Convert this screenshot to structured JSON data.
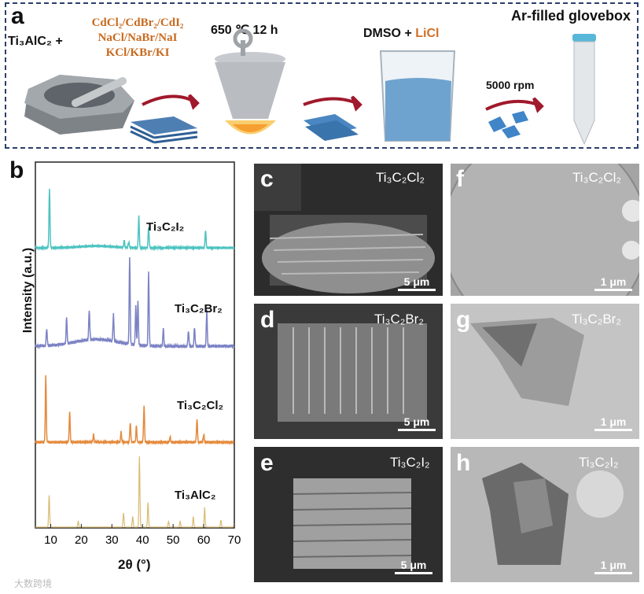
{
  "panels": {
    "a": "a",
    "b": "b",
    "c": "c",
    "d": "d",
    "e": "e",
    "f": "f",
    "g": "g",
    "h": "h"
  },
  "scheme": {
    "precursor": "Ti₃AlC₂",
    "plus": "+",
    "salts": [
      "CdCl₂/CdBr₂/CdI₂",
      "NaCl/NaBr/NaI",
      "KCl/KBr/KI"
    ],
    "heat": "650 ℃ 12 h",
    "solvent": "DMSO +",
    "salt_add": "LiCl",
    "centrifuge": "5000 rpm",
    "storage": "Ar-filled glovebox"
  },
  "chart_data": {
    "type": "line",
    "xlabel": "2θ (°)",
    "ylabel": "Intensity (a.u.)",
    "xlim": [
      5,
      70
    ],
    "xticks": [
      10,
      20,
      30,
      40,
      50,
      60,
      70
    ],
    "series": [
      {
        "name": "Ti₃C₂I₂",
        "color": "#4cc3c0",
        "peaks": [
          [
            9.6,
            1.0
          ],
          [
            38.8,
            0.55
          ],
          [
            42,
            0.35
          ],
          [
            60.6,
            0.3
          ],
          [
            34,
            0.12
          ],
          [
            35.5,
            0.1
          ]
        ]
      },
      {
        "name": "Ti₃C₂Br₂",
        "color": "#7b82c4",
        "peaks": [
          [
            8.7,
            0.2
          ],
          [
            15.2,
            0.3
          ],
          [
            22.6,
            0.35
          ],
          [
            30.5,
            0.32
          ],
          [
            35.8,
            1.0
          ],
          [
            37.8,
            0.45
          ],
          [
            38.5,
            0.5
          ],
          [
            42,
            0.85
          ],
          [
            46.8,
            0.2
          ],
          [
            55,
            0.18
          ],
          [
            57,
            0.22
          ],
          [
            61,
            0.42
          ]
        ]
      },
      {
        "name": "Ti₃C₂Cl₂",
        "color": "#e58a3c",
        "peaks": [
          [
            8.4,
            1.0
          ],
          [
            16.2,
            0.45
          ],
          [
            24,
            0.12
          ],
          [
            33,
            0.15
          ],
          [
            36,
            0.3
          ],
          [
            38,
            0.25
          ],
          [
            40.5,
            0.55
          ],
          [
            49,
            0.08
          ],
          [
            57.8,
            0.35
          ],
          [
            60,
            0.12
          ]
        ]
      },
      {
        "name": "Ti₃AlC₂",
        "color": "#d9bb72",
        "peaks": [
          [
            9.5,
            0.45
          ],
          [
            19,
            0.08
          ],
          [
            33.8,
            0.2
          ],
          [
            36.8,
            0.15
          ],
          [
            39,
            1.0
          ],
          [
            41.8,
            0.35
          ],
          [
            48.5,
            0.08
          ],
          [
            52.3,
            0.08
          ],
          [
            56.6,
            0.15
          ],
          [
            60.3,
            0.28
          ],
          [
            65.6,
            0.1
          ],
          [
            70,
            0.06
          ]
        ]
      }
    ]
  },
  "images": {
    "c": {
      "label": "Ti₃C₂Cl₂",
      "scale": "5 μm"
    },
    "d": {
      "label": "Ti₃C₂Br₂",
      "scale": "5 μm"
    },
    "e": {
      "label": "Ti₃C₂I₂",
      "scale": "5 μm"
    },
    "f": {
      "label": "Ti₃C₂Cl₂",
      "scale": "1 μm"
    },
    "g": {
      "label": "Ti₃C₂Br₂",
      "scale": "1 μm"
    },
    "h": {
      "label": "Ti₃C₂I₂",
      "scale": "1 μm"
    }
  },
  "watermark": "大数跨境"
}
